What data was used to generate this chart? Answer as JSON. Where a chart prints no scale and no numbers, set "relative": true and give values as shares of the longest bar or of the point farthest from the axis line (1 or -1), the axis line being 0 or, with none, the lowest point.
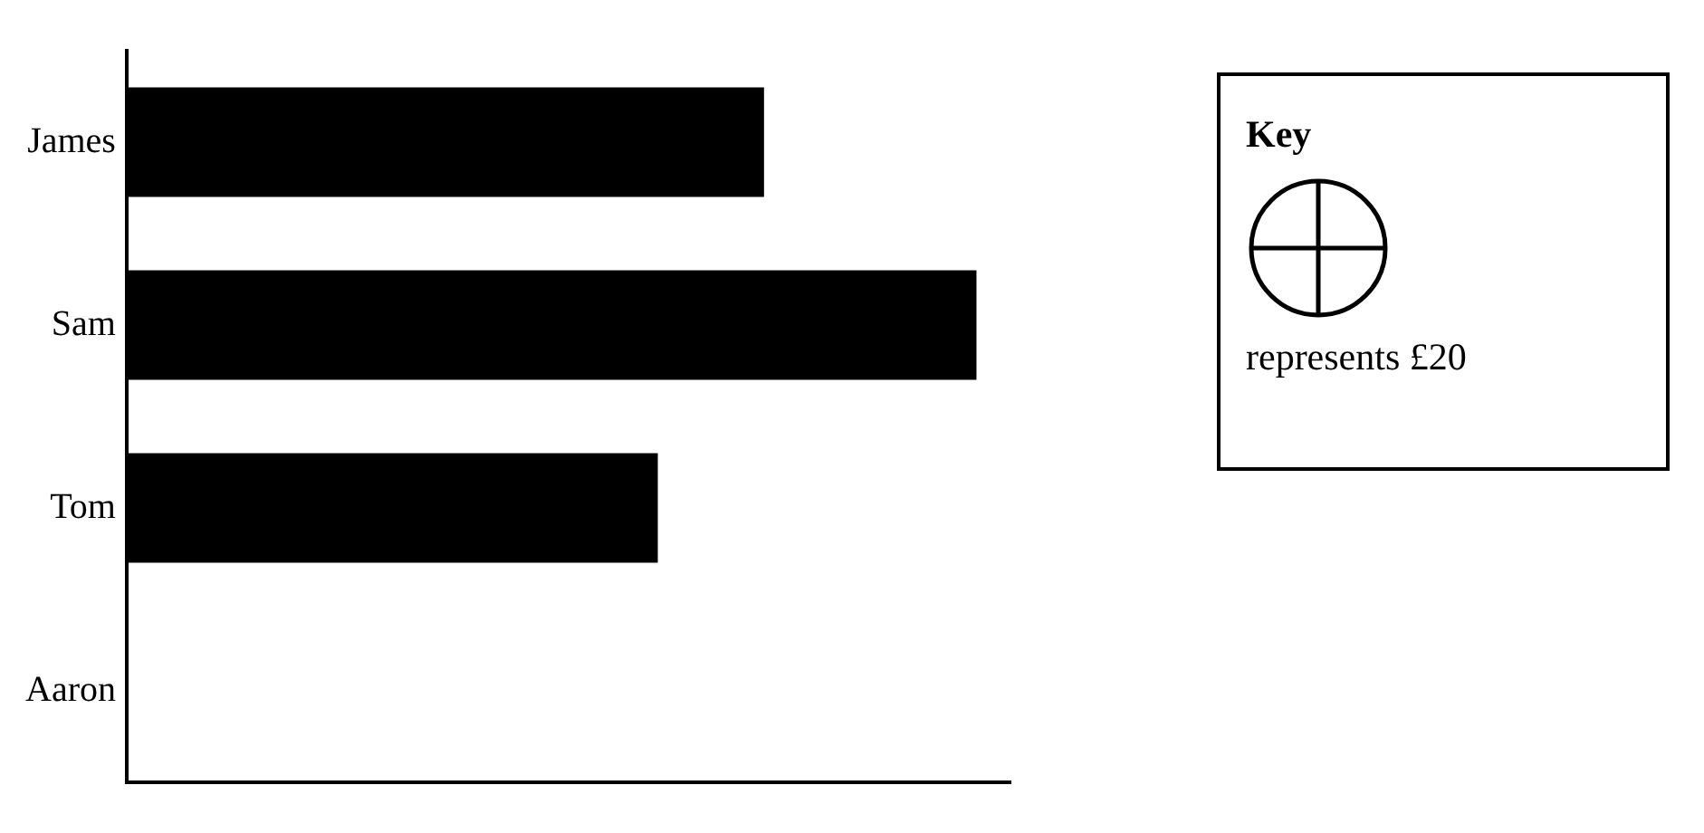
{
  "chart_data": {
    "type": "bar",
    "orientation": "horizontal",
    "relative": true,
    "categories": [
      "James",
      "Sam",
      "Tom",
      "Aaron"
    ],
    "values": [
      0.75,
      1,
      0.625,
      null
    ],
    "color": "#000000",
    "grid": false,
    "legend": false,
    "tick_labels": "y",
    "annotations": [
      "Key",
      "represents £20"
    ]
  }
}
